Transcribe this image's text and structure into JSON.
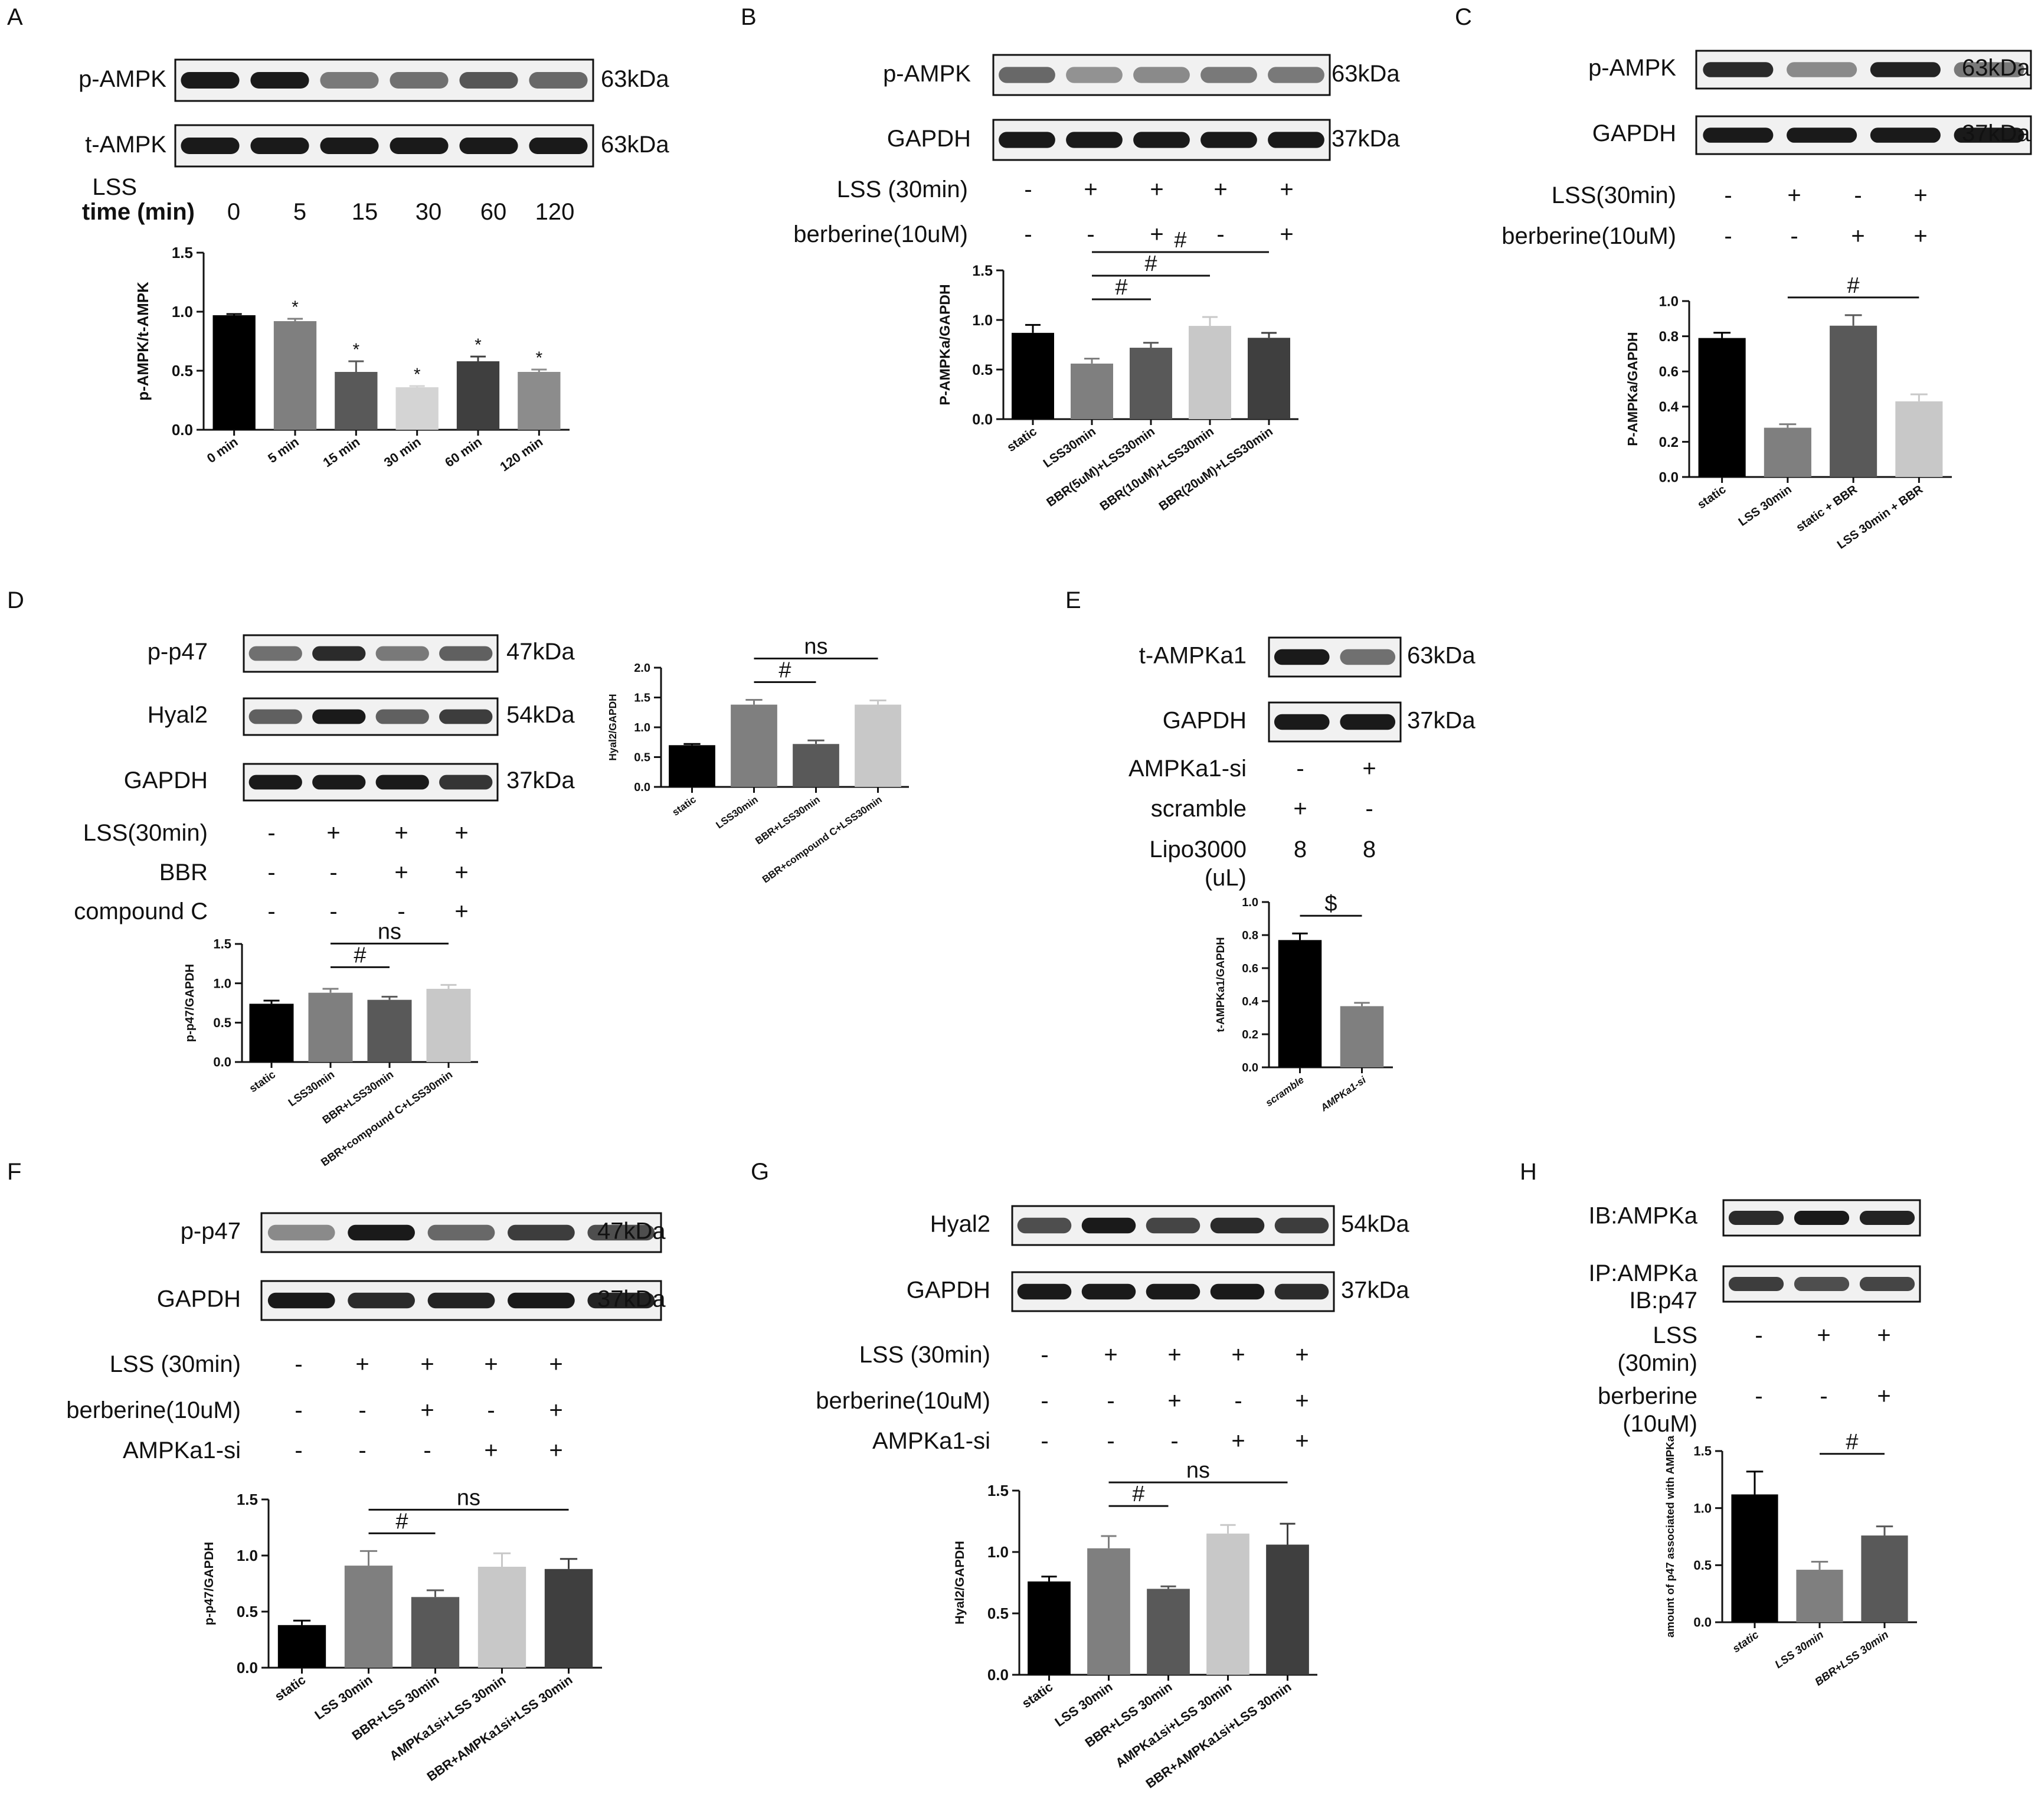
{
  "panels": [
    {
      "id": "A",
      "letter": "A",
      "blots": [
        {
          "label": "p-AMPK",
          "kda": "63kDa",
          "int": [
            1,
            1,
            0.45,
            0.5,
            0.65,
            0.55
          ]
        },
        {
          "label": "t-AMPK",
          "kda": "63kDa",
          "int": [
            1,
            1,
            1,
            1,
            1,
            1
          ]
        }
      ],
      "conds": [
        {
          "label": "LSS",
          "bold": false,
          "vals": []
        },
        {
          "label": "time (min)",
          "bold": true,
          "vals": [
            "0",
            "5",
            "15",
            "30",
            "60",
            "120"
          ]
        }
      ]
    },
    {
      "id": "B",
      "letter": "B",
      "blots": [
        {
          "label": "p-AMPK",
          "kda": "63kDa",
          "int": [
            0.55,
            0.3,
            0.35,
            0.45,
            0.45
          ]
        },
        {
          "label": "GAPDH",
          "kda": "37kDa",
          "int": [
            1,
            1,
            1,
            1,
            1
          ]
        }
      ],
      "conds": [
        {
          "label": "LSS (30min)",
          "vals": [
            "-",
            "+",
            "+",
            "+",
            "+"
          ]
        },
        {
          "label": "berberine(10uM)",
          "vals": [
            "-",
            "-",
            "+",
            "-",
            "+"
          ]
        }
      ]
    },
    {
      "id": "C",
      "letter": "C",
      "blots": [
        {
          "label": "p-AMPK",
          "kda": "63kDa",
          "int": [
            0.9,
            0.35,
            0.95,
            0.45
          ]
        },
        {
          "label": "GAPDH",
          "kda": "37kDa",
          "int": [
            1,
            1,
            1,
            1
          ]
        }
      ],
      "conds": [
        {
          "label": "LSS(30min)",
          "vals": [
            "-",
            "+",
            "-",
            "+"
          ]
        },
        {
          "label": "berberine(10uM)",
          "vals": [
            "-",
            "-",
            "+",
            "+"
          ]
        }
      ]
    },
    {
      "id": "D",
      "letter": "D",
      "blots": [
        {
          "label": "p-p47",
          "kda": "47kDa",
          "int": [
            0.5,
            0.9,
            0.45,
            0.6
          ]
        },
        {
          "label": "Hyal2",
          "kda": "54kDa",
          "int": [
            0.6,
            1,
            0.6,
            0.8
          ]
        },
        {
          "label": "GAPDH",
          "kda": "37kDa",
          "int": [
            1,
            1,
            1,
            0.85
          ]
        }
      ],
      "conds": [
        {
          "label": "LSS(30min)",
          "vals": [
            "-",
            "+",
            "+",
            "+"
          ]
        },
        {
          "label": "BBR",
          "vals": [
            "-",
            "-",
            "+",
            "+"
          ]
        },
        {
          "label": "compound C",
          "vals": [
            "-",
            "-",
            "-",
            "+"
          ]
        }
      ]
    },
    {
      "id": "E",
      "letter": "E",
      "blots": [
        {
          "label": "t-AMPKa1",
          "kda": "63kDa",
          "int": [
            1,
            0.5
          ]
        },
        {
          "label": "GAPDH",
          "kda": "37kDa",
          "int": [
            1,
            1
          ]
        }
      ],
      "conds": [
        {
          "label": "AMPKa1-si",
          "vals": [
            "-",
            "+"
          ]
        },
        {
          "label": "scramble",
          "vals": [
            "+",
            "-"
          ]
        },
        {
          "label": "Lipo3000",
          "vals": [
            "8",
            "8"
          ]
        },
        {
          "label": "(uL)",
          "vals": []
        }
      ]
    },
    {
      "id": "F",
      "letter": "F",
      "blots": [
        {
          "label": "p-p47",
          "kda": "47kDa",
          "int": [
            0.35,
            1,
            0.55,
            0.8,
            0.7
          ]
        },
        {
          "label": "GAPDH",
          "kda": "37kDa",
          "int": [
            1,
            0.9,
            0.95,
            1,
            0.95
          ]
        }
      ],
      "conds": [
        {
          "label": "LSS (30min)",
          "vals": [
            "-",
            "+",
            "+",
            "+",
            "+"
          ]
        },
        {
          "label": "berberine(10uM)",
          "vals": [
            "-",
            "-",
            "+",
            "-",
            "+"
          ]
        },
        {
          "label": "AMPKa1-si",
          "vals": [
            "-",
            "-",
            "-",
            "+",
            "+"
          ]
        }
      ]
    },
    {
      "id": "G",
      "letter": "G",
      "blots": [
        {
          "label": "Hyal2",
          "kda": "54kDa",
          "int": [
            0.7,
            1,
            0.75,
            0.9,
            0.8
          ]
        },
        {
          "label": "GAPDH",
          "kda": "37kDa",
          "int": [
            1,
            1,
            1,
            1,
            0.9
          ]
        }
      ],
      "conds": [
        {
          "label": "LSS (30min)",
          "vals": [
            "-",
            "+",
            "+",
            "+",
            "+"
          ]
        },
        {
          "label": "berberine(10uM)",
          "vals": [
            "-",
            "-",
            "+",
            "-",
            "+"
          ]
        },
        {
          "label": "AMPKa1-si",
          "vals": [
            "-",
            "-",
            "-",
            "+",
            "+"
          ]
        }
      ]
    },
    {
      "id": "H",
      "letter": "H",
      "blots": [
        {
          "label": "IB:AMPKa",
          "kda": "",
          "int": [
            0.9,
            1,
            0.95
          ]
        },
        {
          "label": "IP:AMPKa",
          "label2": "IB:p47",
          "kda": "",
          "int": [
            0.8,
            0.7,
            0.75
          ]
        }
      ],
      "conds": [
        {
          "label": "LSS",
          "vals": [
            "-",
            "+",
            "+"
          ]
        },
        {
          "label": "(30min)",
          "vals": []
        },
        {
          "label": "berberine",
          "vals": [
            "-",
            "-",
            "+"
          ]
        },
        {
          "label": "(10uM)",
          "vals": []
        }
      ]
    }
  ],
  "chart_data": [
    {
      "id": "A",
      "type": "bar",
      "ylabel": "p-AMPK/t-AMPK",
      "ylim": [
        0,
        1.5
      ],
      "yticks": [
        "0.0",
        "0.5",
        "1.0",
        "1.5"
      ],
      "categories": [
        "0 min",
        "5 min",
        "15 min",
        "30 min",
        "60 min",
        "120 min"
      ],
      "values": [
        0.97,
        0.92,
        0.49,
        0.36,
        0.58,
        0.49
      ],
      "errors": [
        0.01,
        0.02,
        0.09,
        0.01,
        0.04,
        0.02
      ],
      "colors": [
        "#000000",
        "#7f7f7f",
        "#595959",
        "#d4d4d4",
        "#3f3f3f",
        "#8c8c8c"
      ],
      "stars": [
        "",
        "*",
        "*",
        "*",
        "*",
        "*"
      ],
      "comparisons": []
    },
    {
      "id": "B",
      "type": "bar",
      "ylabel": "P-AMPKa/GAPDH",
      "ylim": [
        0,
        1.5
      ],
      "yticks": [
        "0.0",
        "0.5",
        "1.0",
        "1.5"
      ],
      "categories": [
        "static",
        "LSS30min",
        "BBR(5uM)+LSS30min",
        "BBR(10uM)+LSS30min",
        "BBR(20uM)+LSS30min"
      ],
      "values": [
        0.87,
        0.56,
        0.72,
        0.94,
        0.82
      ],
      "errors": [
        0.08,
        0.05,
        0.05,
        0.09,
        0.05
      ],
      "colors": [
        "#000000",
        "#7f7f7f",
        "#595959",
        "#c8c8c8",
        "#3f3f3f"
      ],
      "stars": [],
      "comparisons": [
        {
          "from": 1,
          "to": 2,
          "label": "#",
          "level": 0
        },
        {
          "from": 1,
          "to": 3,
          "label": "#",
          "level": 1
        },
        {
          "from": 1,
          "to": 4,
          "label": "#",
          "level": 2
        }
      ]
    },
    {
      "id": "C",
      "type": "bar",
      "ylabel": "P-AMPKa/GAPDH",
      "ylim": [
        0,
        1.0
      ],
      "yticks": [
        "0.0",
        "0.2",
        "0.4",
        "0.6",
        "0.8",
        "1.0"
      ],
      "categories": [
        "static",
        "LSS 30min",
        "static + BBR",
        "LSS 30min + BBR"
      ],
      "values": [
        0.79,
        0.28,
        0.86,
        0.43
      ],
      "errors": [
        0.03,
        0.02,
        0.06,
        0.04
      ],
      "colors": [
        "#000000",
        "#7f7f7f",
        "#595959",
        "#c8c8c8"
      ],
      "stars": [],
      "comparisons": [
        {
          "from": 1,
          "to": 3,
          "label": "#",
          "level": 0
        }
      ]
    },
    {
      "id": "D1",
      "type": "bar",
      "ylabel": "Hyal2/GAPDH",
      "ylim": [
        0,
        2.0
      ],
      "yticks": [
        "0.0",
        "0.5",
        "1.0",
        "1.5",
        "2.0"
      ],
      "categories": [
        "static",
        "LSS30min",
        "BBR+LSS30min",
        "BBR+compound C+LSS30min"
      ],
      "values": [
        0.7,
        1.38,
        0.72,
        1.38
      ],
      "errors": [
        0.02,
        0.08,
        0.06,
        0.07
      ],
      "colors": [
        "#000000",
        "#7f7f7f",
        "#595959",
        "#c8c8c8"
      ],
      "stars": [],
      "comparisons": [
        {
          "from": 1,
          "to": 2,
          "label": "#",
          "level": 0
        },
        {
          "from": 1,
          "to": 3,
          "label": "ns",
          "level": 1
        }
      ]
    },
    {
      "id": "D2",
      "type": "bar",
      "ylabel": "p-p47/GAPDH",
      "ylim": [
        0,
        1.5
      ],
      "yticks": [
        "0.0",
        "0.5",
        "1.0",
        "1.5"
      ],
      "categories": [
        "static",
        "LSS30min",
        "BBR+LSS30min",
        "BBR+compound C+LSS30min"
      ],
      "values": [
        0.74,
        0.88,
        0.79,
        0.93
      ],
      "errors": [
        0.04,
        0.05,
        0.04,
        0.05
      ],
      "colors": [
        "#000000",
        "#7f7f7f",
        "#595959",
        "#c8c8c8"
      ],
      "stars": [],
      "comparisons": [
        {
          "from": 1,
          "to": 2,
          "label": "#",
          "level": 0
        },
        {
          "from": 1,
          "to": 3,
          "label": "ns",
          "level": 1
        }
      ]
    },
    {
      "id": "E",
      "type": "bar",
      "ylabel": "t-AMPKa1/GAPDH",
      "ylim": [
        0,
        1.0
      ],
      "yticks": [
        "0.0",
        "0.2",
        "0.4",
        "0.6",
        "0.8",
        "1.0"
      ],
      "categories": [
        "scramble",
        "AMPKa1-si"
      ],
      "italic": true,
      "values": [
        0.77,
        0.37
      ],
      "errors": [
        0.04,
        0.02
      ],
      "colors": [
        "#000000",
        "#7f7f7f"
      ],
      "stars": [],
      "comparisons": [
        {
          "from": 0,
          "to": 1,
          "label": "$",
          "level": 0
        }
      ]
    },
    {
      "id": "F",
      "type": "bar",
      "ylabel": "p-p47/GAPDH",
      "ylim": [
        0,
        1.5
      ],
      "yticks": [
        "0.0",
        "0.5",
        "1.0",
        "1.5"
      ],
      "categories": [
        "static",
        "LSS 30min",
        "BBR+LSS 30min",
        "AMPKa1si+LSS 30min",
        "BBR+AMPKa1si+LSS 30min"
      ],
      "values": [
        0.38,
        0.91,
        0.63,
        0.9,
        0.88
      ],
      "errors": [
        0.04,
        0.13,
        0.06,
        0.12,
        0.09
      ],
      "colors": [
        "#000000",
        "#7f7f7f",
        "#595959",
        "#c8c8c8",
        "#3f3f3f"
      ],
      "stars": [],
      "comparisons": [
        {
          "from": 1,
          "to": 2,
          "label": "#",
          "level": 0
        },
        {
          "from": 1,
          "to": 4,
          "label": "ns",
          "level": 1
        }
      ]
    },
    {
      "id": "G",
      "type": "bar",
      "ylabel": "Hyal2/GAPDH",
      "ylim": [
        0,
        1.5
      ],
      "yticks": [
        "0.0",
        "0.5",
        "1.0",
        "1.5"
      ],
      "categories": [
        "static",
        "LSS 30min",
        "BBR+LSS 30min",
        "AMPKa1si+LSS 30min",
        "BBR+AMPKa1si+LSS 30min"
      ],
      "values": [
        0.76,
        1.03,
        0.7,
        1.15,
        1.06
      ],
      "errors": [
        0.04,
        0.1,
        0.02,
        0.07,
        0.17
      ],
      "colors": [
        "#000000",
        "#7f7f7f",
        "#595959",
        "#c8c8c8",
        "#3f3f3f"
      ],
      "stars": [],
      "comparisons": [
        {
          "from": 1,
          "to": 2,
          "label": "#",
          "level": 0
        },
        {
          "from": 1,
          "to": 4,
          "label": "ns",
          "level": 1
        }
      ]
    },
    {
      "id": "H",
      "type": "bar",
      "ylabel": "amount of p47 associated with AMPKa",
      "ylim": [
        0,
        1.5
      ],
      "yticks": [
        "0.0",
        "0.5",
        "1.0",
        "1.5"
      ],
      "categories": [
        "static",
        "LSS 30min",
        "BBR+LSS 30min"
      ],
      "italic": true,
      "values": [
        1.12,
        0.46,
        0.76
      ],
      "errors": [
        0.2,
        0.07,
        0.08
      ],
      "colors": [
        "#000000",
        "#7f7f7f",
        "#595959"
      ],
      "stars": [],
      "comparisons": [
        {
          "from": 1,
          "to": 2,
          "label": "#",
          "level": 0
        }
      ]
    }
  ]
}
